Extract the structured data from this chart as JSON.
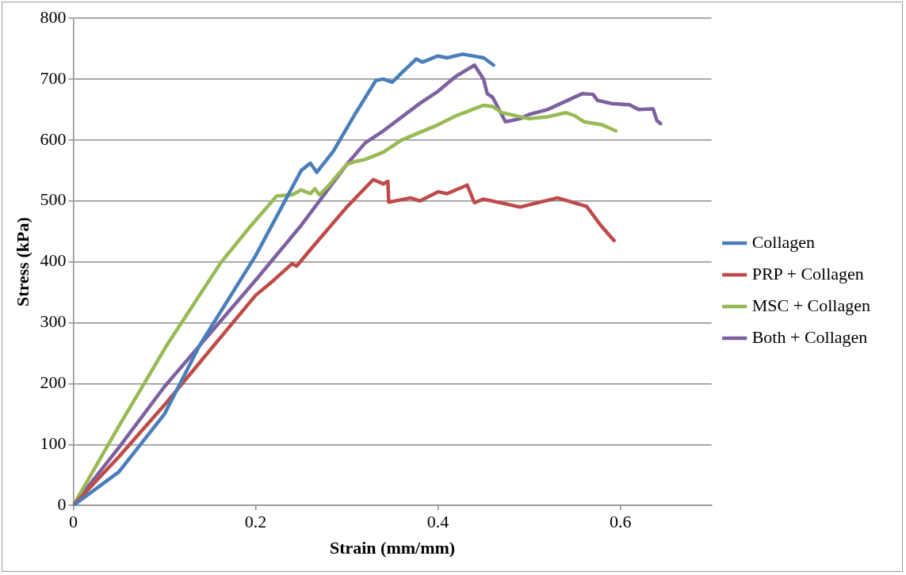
{
  "chart_data": {
    "type": "line",
    "xlabel": "Strain (mm/mm)",
    "ylabel": "Stress (kPa)",
    "xlim": [
      0,
      0.7
    ],
    "xticks": [
      0,
      {
        "value": 0.2,
        "label": "0.2"
      },
      {
        "value": 0.4,
        "label": "0.4"
      },
      {
        "value": 0.6,
        "label": "0.6"
      }
    ],
    "ylim": [
      0,
      800
    ],
    "yticks": [
      0,
      100,
      200,
      300,
      400,
      500,
      600,
      700,
      800
    ],
    "grid": "y",
    "legend": "right",
    "marker": "none",
    "line_style": "solid",
    "series": [
      {
        "name": "Collagen",
        "color": "#4a7ebb",
        "x": [
          0,
          0.05,
          0.1,
          0.139,
          0.2,
          0.25,
          0.26,
          0.267,
          0.285,
          0.31,
          0.332,
          0.34,
          0.35,
          0.36,
          0.376,
          0.383,
          0.4,
          0.41,
          0.427,
          0.45,
          0.461
        ],
        "values": [
          0,
          55,
          150,
          264,
          410,
          550,
          562,
          547,
          581,
          645,
          698,
          700,
          695,
          710,
          733,
          728,
          738,
          735,
          741,
          735,
          723
        ]
      },
      {
        "name": "PRP + Collagen",
        "color": "#be4b48",
        "x": [
          0,
          0.05,
          0.1,
          0.2,
          0.22,
          0.24,
          0.245,
          0.26,
          0.3,
          0.329,
          0.34,
          0.345,
          0.346,
          0.37,
          0.38,
          0.4,
          0.41,
          0.432,
          0.44,
          0.45,
          0.49,
          0.531,
          0.563,
          0.579,
          0.593
        ],
        "values": [
          0,
          80,
          165,
          345,
          370,
          397,
          393,
          420,
          490,
          535,
          528,
          532,
          498,
          505,
          500,
          515,
          512,
          526,
          497,
          503,
          490,
          505,
          491,
          459,
          435
        ]
      },
      {
        "name": "MSC + Collagen",
        "color": "#98b954",
        "x": [
          0,
          0.05,
          0.103,
          0.162,
          0.193,
          0.223,
          0.24,
          0.25,
          0.26,
          0.265,
          0.27,
          0.28,
          0.3,
          0.31,
          0.32,
          0.34,
          0.36,
          0.4,
          0.42,
          0.45,
          0.46,
          0.47,
          0.5,
          0.52,
          0.54,
          0.55,
          0.56,
          0.58,
          0.595
        ],
        "values": [
          0,
          130,
          264,
          399,
          456,
          508,
          510,
          518,
          512,
          520,
          510,
          525,
          560,
          565,
          568,
          580,
          600,
          625,
          640,
          657,
          655,
          645,
          635,
          638,
          645,
          640,
          630,
          625,
          615
        ]
      },
      {
        "name": "Both + Collagen",
        "color": "#7d60a0",
        "x": [
          0,
          0.05,
          0.1,
          0.2,
          0.25,
          0.3,
          0.32,
          0.34,
          0.38,
          0.4,
          0.42,
          0.44,
          0.45,
          0.454,
          0.46,
          0.474,
          0.49,
          0.5,
          0.52,
          0.558,
          0.57,
          0.575,
          0.59,
          0.61,
          0.62,
          0.636,
          0.64,
          0.644
        ],
        "values": [
          0,
          95,
          195,
          370,
          460,
          560,
          595,
          615,
          660,
          680,
          705,
          723,
          700,
          676,
          670,
          630,
          635,
          642,
          650,
          676,
          675,
          665,
          660,
          658,
          650,
          651,
          632,
          627
        ]
      }
    ]
  }
}
